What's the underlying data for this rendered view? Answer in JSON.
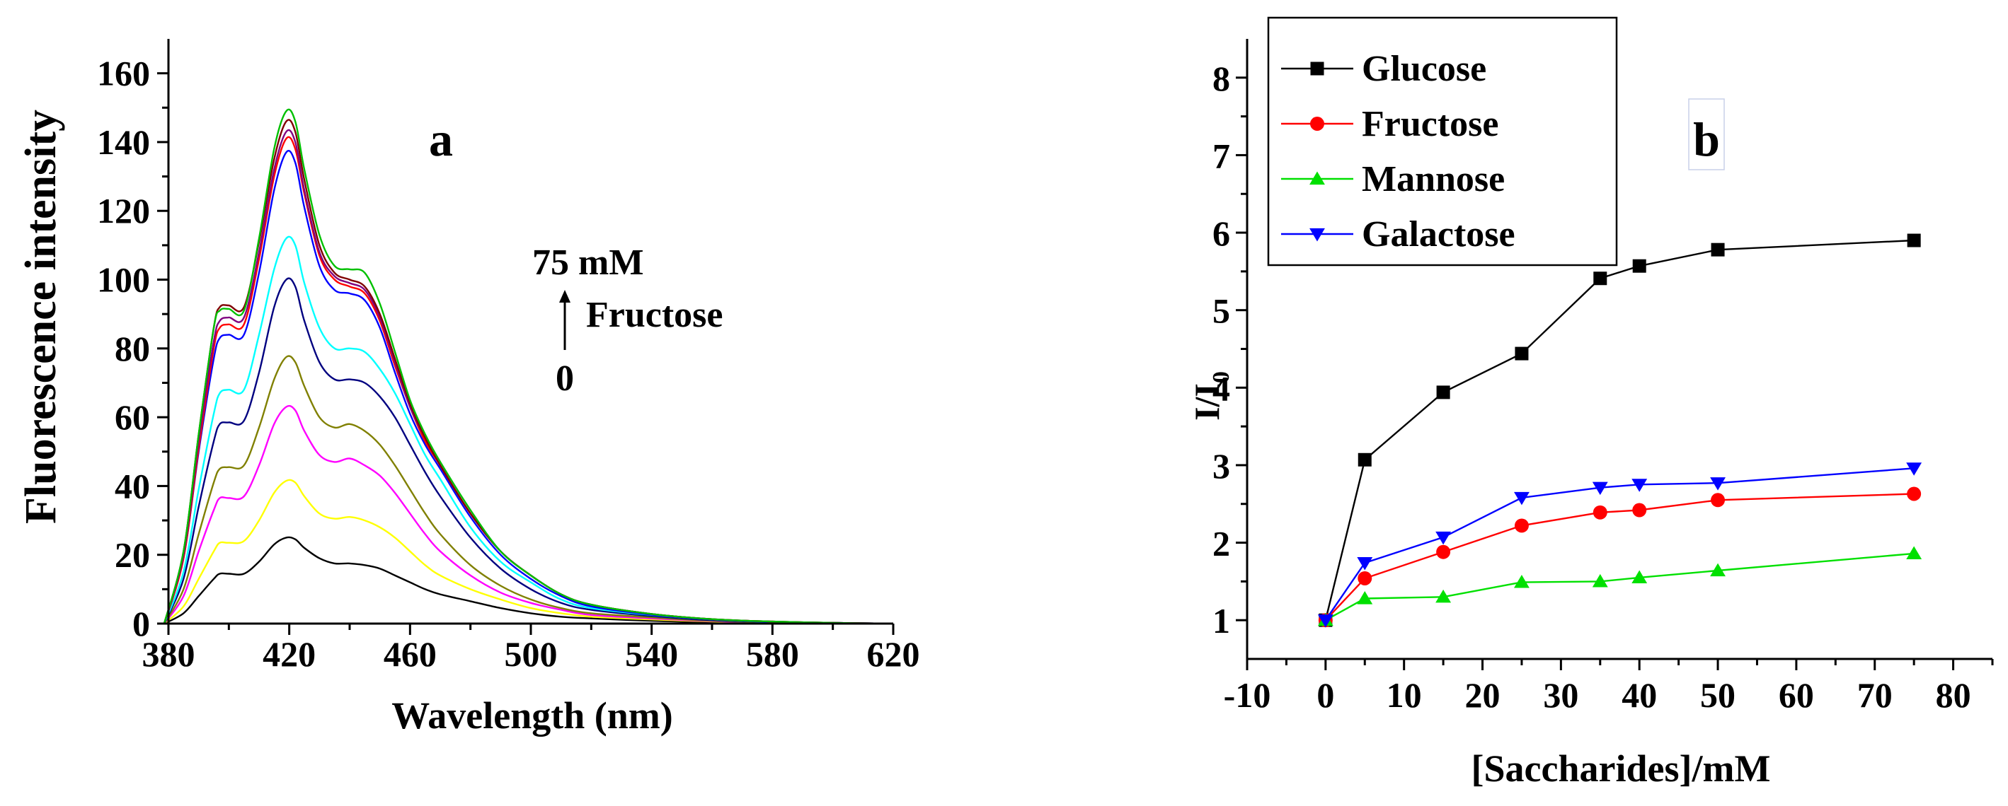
{
  "chart_data": [
    {
      "type": "line",
      "panel_label": "a",
      "xlabel": "Wavelength (nm)",
      "ylabel": "Fluorescence intensity",
      "xlim": [
        380,
        620
      ],
      "ylim": [
        0,
        170
      ],
      "xticks": [
        380,
        420,
        460,
        500,
        540,
        580,
        620
      ],
      "yticks": [
        0,
        20,
        40,
        60,
        80,
        100,
        120,
        140,
        160
      ],
      "annotation": {
        "top": "75 mM",
        "middle": "Fructose",
        "bottom": "0"
      },
      "x": [
        378,
        385,
        390,
        395,
        397,
        400,
        405,
        410,
        415,
        419,
        422,
        425,
        430,
        435,
        440,
        445,
        450,
        455,
        460,
        465,
        470,
        480,
        490,
        500,
        510,
        520,
        540,
        560,
        580,
        600,
        620
      ],
      "series": [
        {
          "color": "#000000",
          "values": [
            0,
            3,
            8,
            13,
            14.5,
            14.5,
            14.5,
            18,
            23,
            25,
            24.5,
            22,
            19,
            17.5,
            17.5,
            17,
            16,
            14,
            12,
            10,
            8.5,
            6.5,
            4.5,
            3,
            2,
            1.5,
            0.8,
            0.4,
            0.2,
            0.1,
            0
          ]
        },
        {
          "color": "#ffff00",
          "values": [
            0,
            5,
            13,
            21,
            23.5,
            23.5,
            24,
            30,
            38,
            41.5,
            41,
            37,
            32,
            30.5,
            31,
            30,
            28,
            25,
            21,
            17,
            14,
            10,
            7,
            4.5,
            3,
            2,
            1.2,
            0.6,
            0.3,
            0.1,
            0
          ]
        },
        {
          "color": "#ff00ff",
          "values": [
            0,
            8,
            21,
            33,
            36.5,
            36.5,
            37,
            46,
            58,
            63,
            62,
            56,
            49,
            47,
            48,
            46,
            43,
            38,
            32,
            26,
            21,
            14,
            9,
            6,
            4,
            2.5,
            1.5,
            0.7,
            0.3,
            0.1,
            0
          ]
        },
        {
          "color": "#808000",
          "values": [
            0,
            10,
            26,
            41,
            45,
            45.5,
            46,
            57,
            71,
            77.5,
            76,
            69,
            60,
            57,
            58,
            56,
            52,
            46,
            39,
            32,
            26,
            17,
            11,
            7,
            4.5,
            3,
            1.8,
            0.8,
            0.4,
            0.1,
            0
          ]
        },
        {
          "color": "#000080",
          "values": [
            0,
            13,
            34,
            53,
            58,
            58.5,
            59,
            73,
            92,
            100,
            98,
            88,
            76,
            71,
            71,
            70,
            66,
            60,
            52,
            44,
            37,
            25,
            16,
            10,
            6,
            4,
            2.2,
            1,
            0.5,
            0.2,
            0
          ]
        },
        {
          "color": "#00ffff",
          "values": [
            0,
            15,
            39,
            61,
            67,
            68,
            68,
            84,
            103,
            112,
            110,
            99,
            86,
            80,
            80,
            79,
            74,
            67,
            58,
            49,
            42,
            28,
            18,
            12,
            7,
            4.5,
            2.5,
            1.2,
            0.5,
            0.2,
            0
          ]
        },
        {
          "color": "#0000ff",
          "values": [
            0,
            19,
            50,
            77,
            83,
            84,
            84,
            102,
            126,
            137,
            134,
            121,
            104,
            97,
            96,
            94,
            86,
            73,
            61,
            52,
            45,
            31,
            20,
            13,
            8,
            5,
            2.6,
            1.2,
            0.5,
            0.2,
            0
          ]
        },
        {
          "color": "#ff0000",
          "values": [
            0,
            19,
            51,
            80,
            86,
            87,
            87,
            106,
            130,
            141,
            138,
            125,
            107,
            100,
            98,
            96,
            88,
            75,
            63,
            53,
            46,
            32,
            21,
            14,
            8.5,
            5.5,
            2.8,
            1.3,
            0.6,
            0.2,
            0
          ]
        },
        {
          "color": "#800080",
          "values": [
            0,
            20,
            53,
            82,
            88,
            89,
            89,
            108,
            132,
            143,
            140,
            126,
            108,
            101,
            99,
            97,
            89,
            76,
            63,
            54,
            46,
            32,
            21,
            14,
            8.5,
            5.5,
            2.8,
            1.3,
            0.6,
            0.2,
            0
          ]
        },
        {
          "color": "#800000",
          "values": [
            0,
            21,
            55,
            86,
            92,
            92.5,
            92,
            111,
            135,
            146,
            143,
            129,
            110,
            102,
            100,
            98,
            90,
            77,
            64,
            54,
            46,
            32,
            21,
            14,
            8.5,
            5.5,
            2.8,
            1.3,
            0.6,
            0.2,
            0
          ]
        },
        {
          "color": "#00c000",
          "values": [
            0,
            21,
            55,
            86,
            91,
            91.5,
            91,
            112,
            138,
            149,
            146,
            132,
            113,
            104,
            103,
            102,
            93,
            79,
            65,
            55,
            47,
            33,
            21,
            14,
            8.5,
            5.5,
            2.8,
            1.3,
            0.6,
            0.2,
            0
          ]
        }
      ]
    },
    {
      "type": "line",
      "panel_label": "b",
      "xlabel": "[Saccharides]/mM",
      "ylabel": "I/I",
      "ylabel_subscript": "0",
      "xlim": [
        -10,
        85
      ],
      "ylim": [
        0.5,
        8.5
      ],
      "xticks": [
        -10,
        0,
        10,
        20,
        30,
        40,
        50,
        60,
        70,
        80
      ],
      "yticks": [
        1,
        2,
        3,
        4,
        5,
        6,
        7,
        8
      ],
      "legend_position": "top-left",
      "x": [
        0,
        5,
        15,
        25,
        35,
        40,
        50,
        75
      ],
      "series": [
        {
          "name": "Glucose",
          "color": "#000000",
          "marker": "square",
          "values": [
            1.0,
            3.07,
            3.94,
            4.44,
            5.41,
            5.57,
            5.78,
            5.9
          ]
        },
        {
          "name": "Fructose",
          "color": "#ff0000",
          "marker": "circle",
          "values": [
            1.0,
            1.54,
            1.88,
            2.22,
            2.39,
            2.42,
            2.55,
            2.63
          ]
        },
        {
          "name": "Mannose",
          "color": "#00e000",
          "marker": "triangle-up",
          "values": [
            1.0,
            1.28,
            1.3,
            1.49,
            1.5,
            1.55,
            1.64,
            1.86
          ]
        },
        {
          "name": "Galactose",
          "color": "#0000ff",
          "marker": "triangle-down",
          "values": [
            1.0,
            1.74,
            2.07,
            2.58,
            2.71,
            2.75,
            2.77,
            2.96
          ]
        }
      ]
    }
  ]
}
